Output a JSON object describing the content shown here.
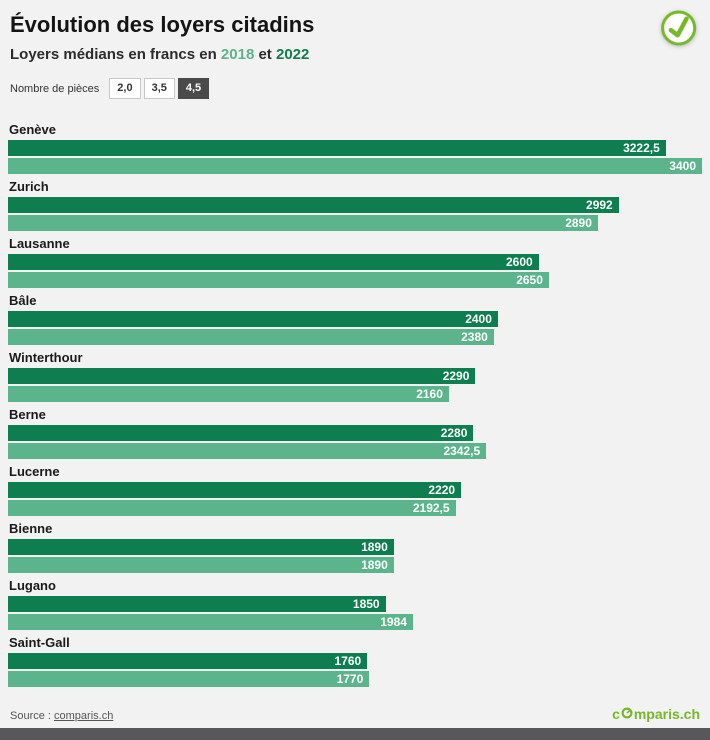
{
  "header": {
    "title": "Évolution des loyers citadins",
    "subtitle_prefix": "Loyers médians en francs en ",
    "year_2018": "2018",
    "subtitle_joiner": " et ",
    "year_2022": "2022"
  },
  "filter": {
    "label": "Nombre de pièces",
    "options": [
      "2,0",
      "3,5",
      "4,5"
    ],
    "selected": "4,5"
  },
  "chart_data": {
    "type": "bar",
    "orientation": "horizontal",
    "title": "Évolution des loyers citadins",
    "subtitle": "Loyers médians en francs en 2018 et 2022",
    "unit": "francs",
    "xlim": [
      0,
      3400
    ],
    "grid": false,
    "value_labels_inside_bars": true,
    "categories": [
      "Genève",
      "Zurich",
      "Lausanne",
      "Bâle",
      "Winterthour",
      "Berne",
      "Lucerne",
      "Bienne",
      "Lugano",
      "Saint-Gall"
    ],
    "series": [
      {
        "name": "2022",
        "color": "#0e7d4f",
        "values": [
          3222.5,
          2992,
          2600,
          2400,
          2290,
          2280,
          2220,
          1890,
          1850,
          1760
        ],
        "labels": [
          "3222,5",
          "2992",
          "2600",
          "2400",
          "2290",
          "2280",
          "2220",
          "1890",
          "1850",
          "1760"
        ]
      },
      {
        "name": "2018",
        "color": "#5cb48c",
        "values": [
          3400,
          2890,
          2650,
          2380,
          2160,
          2342.5,
          2192.5,
          1890,
          1984,
          1770
        ],
        "labels": [
          "3400",
          "2890",
          "2650",
          "2380",
          "2160",
          "2342,5",
          "2192,5",
          "1890",
          "1984",
          "1770"
        ]
      }
    ]
  },
  "footer": {
    "source_prefix": "Source : ",
    "source_link": "comparis.ch",
    "brand": "comparis.ch",
    "brand_c": "c",
    "brand_rest": "mparis.ch"
  },
  "icons": {
    "header_logo": "check-circle-icon",
    "brand_o": "dial-circle-icon"
  },
  "theme": {
    "green_dark": "#0e7d4f",
    "green_light": "#5cb48c",
    "brand_green": "#76b82a",
    "background": "#f2f2f2",
    "selected_button_bg": "#4a4a4a",
    "bottom_bar": "#58585a"
  }
}
